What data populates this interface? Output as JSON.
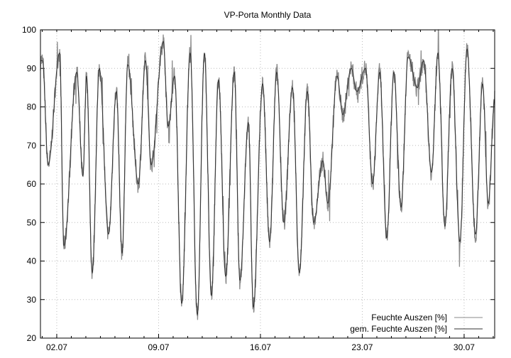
{
  "chart_data": {
    "type": "line",
    "title": "VP-Porta Monthly Data",
    "xlabel": "",
    "ylabel": "",
    "ylim": [
      20,
      100
    ],
    "yticks": [
      20,
      30,
      40,
      50,
      60,
      70,
      80,
      90,
      100
    ],
    "xlim_days": [
      -0.12,
      31.1
    ],
    "xticks": [
      {
        "day": 1,
        "label": "02.07"
      },
      {
        "day": 8,
        "label": "09.07"
      },
      {
        "day": 15,
        "label": "16.07"
      },
      {
        "day": 22,
        "label": "23.07"
      },
      {
        "day": 29,
        "label": "30.07"
      }
    ],
    "grid": true,
    "legend_position": "bottom-right",
    "series": [
      {
        "name": "Feuchte Auszen [%]",
        "color": "#8a8a8a",
        "noisy": true
      },
      {
        "name": "gem. Feuchte Auszen [%]",
        "color": "#333333",
        "noisy": false
      }
    ],
    "keypoints": [
      [
        -0.12,
        92
      ],
      [
        0.02,
        92
      ],
      [
        0.41,
        65
      ],
      [
        1.2,
        94
      ],
      [
        1.49,
        44
      ],
      [
        2.37,
        89
      ],
      [
        2.8,
        62
      ],
      [
        3.05,
        88
      ],
      [
        3.44,
        37
      ],
      [
        3.93,
        90
      ],
      [
        4.56,
        47
      ],
      [
        5.1,
        84
      ],
      [
        5.49,
        42
      ],
      [
        5.88,
        91
      ],
      [
        6.61,
        60
      ],
      [
        7.1,
        92
      ],
      [
        7.49,
        65
      ],
      [
        8.32,
        97
      ],
      [
        8.66,
        75
      ],
      [
        9.1,
        88
      ],
      [
        9.59,
        29
      ],
      [
        10.17,
        94
      ],
      [
        10.66,
        26
      ],
      [
        11.15,
        94
      ],
      [
        11.63,
        31
      ],
      [
        12.12,
        87
      ],
      [
        12.61,
        36
      ],
      [
        13.2,
        89
      ],
      [
        13.59,
        35
      ],
      [
        14.17,
        76
      ],
      [
        14.51,
        28
      ],
      [
        15.15,
        86
      ],
      [
        15.63,
        45
      ],
      [
        16.12,
        89
      ],
      [
        16.61,
        50
      ],
      [
        17.2,
        85
      ],
      [
        17.68,
        37
      ],
      [
        18.22,
        84
      ],
      [
        18.66,
        50
      ],
      [
        19.29,
        66
      ],
      [
        19.63,
        55
      ],
      [
        20.27,
        88
      ],
      [
        20.66,
        78
      ],
      [
        21.24,
        90
      ],
      [
        21.63,
        84
      ],
      [
        22.22,
        90
      ],
      [
        22.71,
        60
      ],
      [
        23.2,
        89
      ],
      [
        23.68,
        46
      ],
      [
        24.17,
        89
      ],
      [
        24.66,
        54
      ],
      [
        25.15,
        93
      ],
      [
        25.78,
        85
      ],
      [
        26.22,
        92
      ],
      [
        26.76,
        63
      ],
      [
        27.2,
        94
      ],
      [
        27.68,
        49
      ],
      [
        28.17,
        90
      ],
      [
        28.71,
        45
      ],
      [
        29.2,
        95
      ],
      [
        29.78,
        47
      ],
      [
        30.27,
        86
      ],
      [
        30.66,
        55
      ],
      [
        31.1,
        82
      ]
    ]
  }
}
